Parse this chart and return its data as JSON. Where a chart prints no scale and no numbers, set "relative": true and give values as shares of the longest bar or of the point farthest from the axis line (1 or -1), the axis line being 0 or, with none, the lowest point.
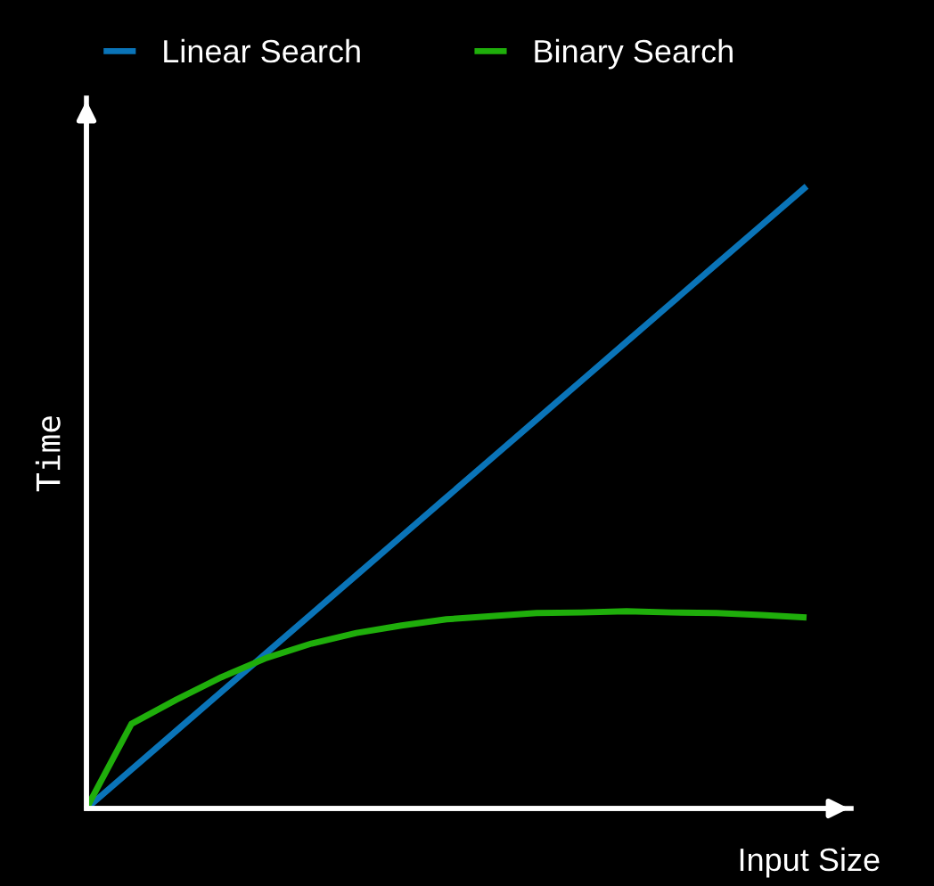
{
  "chart_data": {
    "type": "line",
    "relative": true,
    "xlabel": "Input Size",
    "ylabel": "Time",
    "legend": "top",
    "grid": false,
    "marker": "none",
    "line_style": "solid",
    "categories": [
      null,
      null,
      null,
      null,
      null,
      null,
      null,
      null,
      null,
      null,
      null,
      null,
      null,
      null,
      null,
      null,
      null
    ],
    "series": [
      {
        "name": "Linear Search",
        "color": "#0a74b8",
        "values": [
          0,
          0.0625,
          0.125,
          0.1875,
          0.25,
          0.3125,
          0.375,
          0.4375,
          0.5,
          0.5625,
          0.625,
          0.6875,
          0.75,
          0.8125,
          0.875,
          0.9375,
          1
        ]
      },
      {
        "name": "Binary Search",
        "color": "#1fae0b",
        "values": [
          0,
          0.136,
          0.175,
          0.211,
          0.242,
          0.265,
          0.282,
          0.294,
          0.304,
          0.309,
          0.314,
          0.315,
          0.317,
          0.315,
          0.314,
          0.311,
          0.307
        ]
      }
    ]
  }
}
